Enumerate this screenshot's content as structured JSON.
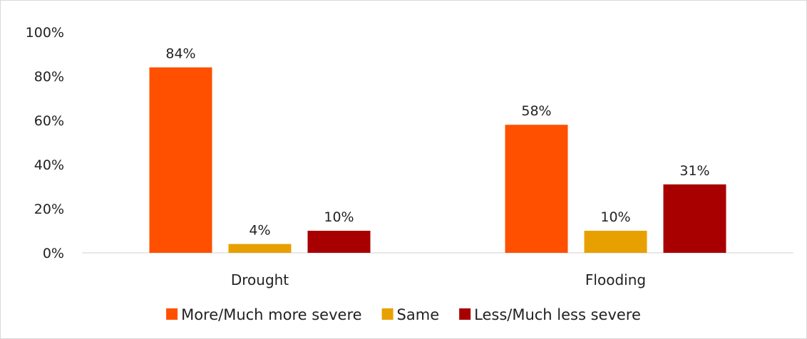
{
  "chart_data": {
    "type": "bar",
    "categories": [
      "Drought",
      "Flooding"
    ],
    "series": [
      {
        "name": "More/Much more severe",
        "color": "#FF5000",
        "values": [
          84,
          58
        ],
        "labels": [
          "84%",
          "58%"
        ]
      },
      {
        "name": "Same",
        "color": "#E8A000",
        "values": [
          4,
          10
        ],
        "labels": [
          "4%",
          "10%"
        ]
      },
      {
        "name": "Less/Much less severe",
        "color": "#A80000",
        "values": [
          10,
          31
        ],
        "labels": [
          "10%",
          "31%"
        ]
      }
    ],
    "ylim": [
      0,
      100
    ],
    "yticks": [
      "0%",
      "20%",
      "40%",
      "60%",
      "80%",
      "100%"
    ],
    "grid": false,
    "legend_position": "bottom"
  }
}
